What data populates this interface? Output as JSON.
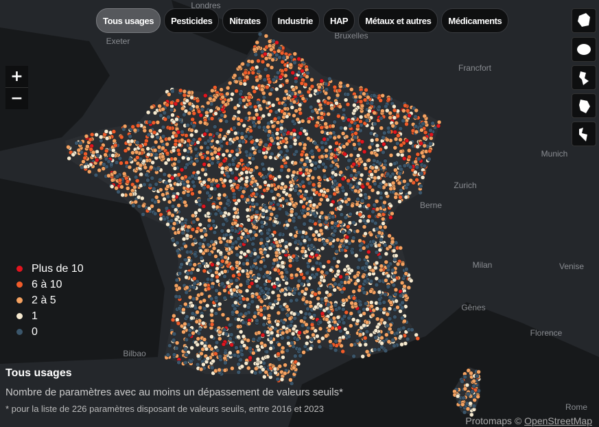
{
  "filters": {
    "items": [
      "Tous usages",
      "Pesticides",
      "Nitrates",
      "Industrie",
      "HAP",
      "Métaux et autres",
      "Médicaments"
    ],
    "active": 0
  },
  "zoom": {
    "in": "+",
    "out": "−"
  },
  "legend": [
    {
      "label": "Plus de 10",
      "color": "#e3141e"
    },
    {
      "label": "6 à 10",
      "color": "#f25c2a"
    },
    {
      "label": "2 à 5",
      "color": "#f5a261"
    },
    {
      "label": "1",
      "color": "#f6ead0"
    },
    {
      "label": "0",
      "color": "#3b566b"
    }
  ],
  "title": "Tous usages",
  "subtitle": "Nombre de paramètres avec au moins un dépassement de valeurs seuils*",
  "footnote": "* pour la liste de 226 paramètres disposant de valeurs seuils, entre 2016 et 2023",
  "attribution": {
    "text": "Protomaps ©",
    "link": "OpenStreetMap"
  },
  "places": [
    "Londres",
    "Exeter",
    "Bruxelles",
    "Francfort",
    "Munich",
    "Zurich",
    "Berne",
    "Milan",
    "Venise",
    "Gênes",
    "Florence",
    "Bilbao",
    "Rome"
  ]
}
